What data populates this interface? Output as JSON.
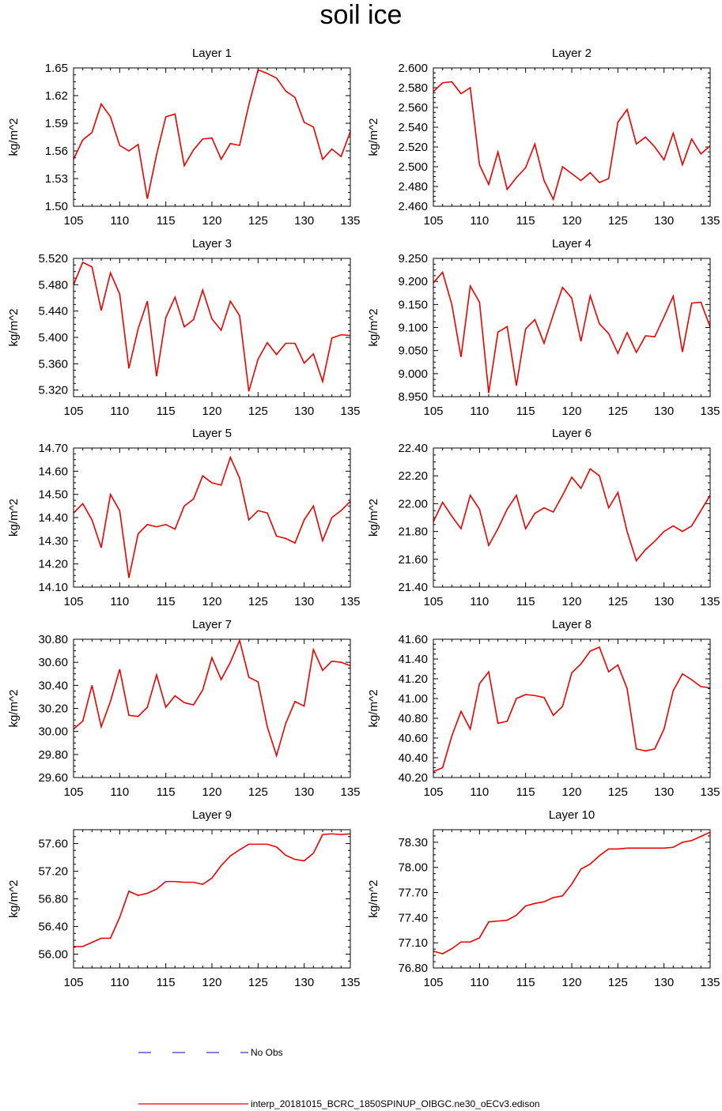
{
  "title": "soil ice",
  "legend": {
    "obs_label": "No Obs",
    "model_label": "interp_20181015_BCRC_1850SPINUP_OIBGC.ne30_oECv3.edison",
    "obs_color": "#0000cc",
    "model_color": "#ee0000"
  },
  "chart_data": [
    {
      "type": "line",
      "title": "Layer 1",
      "ylabel": "kg/m^2",
      "xlabel": "",
      "xlim": [
        105,
        135
      ],
      "ylim": [
        1.5,
        1.65
      ],
      "xticks": [
        "105",
        "110",
        "115",
        "120",
        "125",
        "130",
        "135"
      ],
      "yticks": [
        "1.50",
        "1.53",
        "1.56",
        "1.59",
        "1.62",
        "1.65"
      ],
      "x": [
        105,
        106,
        107,
        108,
        109,
        110,
        111,
        112,
        113,
        114,
        115,
        116,
        117,
        118,
        119,
        120,
        121,
        122,
        123,
        124,
        125,
        126,
        127,
        128,
        129,
        130,
        131,
        132,
        133,
        134,
        135
      ],
      "series": [
        {
          "values": [
            1.551,
            1.572,
            1.58,
            1.611,
            1.597,
            1.566,
            1.56,
            1.567,
            1.508,
            1.556,
            1.597,
            1.6,
            1.544,
            1.561,
            1.573,
            1.574,
            1.551,
            1.568,
            1.566,
            1.61,
            1.648,
            1.644,
            1.639,
            1.625,
            1.618,
            1.591,
            1.586,
            1.551,
            1.562,
            1.554,
            1.581
          ],
          "color": "#ee0000"
        }
      ]
    },
    {
      "type": "line",
      "title": "Layer 2",
      "ylabel": "kg/m^2",
      "xlabel": "",
      "xlim": [
        105,
        135
      ],
      "ylim": [
        2.46,
        2.6
      ],
      "xticks": [
        "105",
        "110",
        "115",
        "120",
        "125",
        "130",
        "135"
      ],
      "yticks": [
        "2.460",
        "2.480",
        "2.500",
        "2.520",
        "2.540",
        "2.560",
        "2.580",
        "2.600"
      ],
      "x": [
        105,
        106,
        107,
        108,
        109,
        110,
        111,
        112,
        113,
        114,
        115,
        116,
        117,
        118,
        119,
        120,
        121,
        122,
        123,
        124,
        125,
        126,
        127,
        128,
        129,
        130,
        131,
        132,
        133,
        134,
        135
      ],
      "series": [
        {
          "values": [
            2.576,
            2.585,
            2.586,
            2.574,
            2.58,
            2.502,
            2.482,
            2.515,
            2.477,
            2.489,
            2.499,
            2.523,
            2.486,
            2.467,
            2.5,
            2.493,
            2.486,
            2.494,
            2.484,
            2.488,
            2.545,
            2.558,
            2.523,
            2.53,
            2.52,
            2.507,
            2.534,
            2.502,
            2.528,
            2.513,
            2.521
          ],
          "color": "#ee0000"
        }
      ]
    },
    {
      "type": "line",
      "title": "Layer 3",
      "ylabel": "kg/m^2",
      "xlabel": "",
      "xlim": [
        105,
        135
      ],
      "ylim": [
        5.31,
        5.52
      ],
      "xticks": [
        "105",
        "110",
        "115",
        "120",
        "125",
        "130",
        "135"
      ],
      "yticks": [
        "5.320",
        "5.360",
        "5.400",
        "5.440",
        "5.480",
        "5.520"
      ],
      "x": [
        105,
        106,
        107,
        108,
        109,
        110,
        111,
        112,
        113,
        114,
        115,
        116,
        117,
        118,
        119,
        120,
        121,
        122,
        123,
        124,
        125,
        126,
        127,
        128,
        129,
        130,
        131,
        132,
        133,
        134,
        135
      ],
      "series": [
        {
          "values": [
            5.48,
            5.514,
            5.507,
            5.441,
            5.498,
            5.466,
            5.353,
            5.413,
            5.455,
            5.341,
            5.43,
            5.461,
            5.416,
            5.427,
            5.472,
            5.428,
            5.411,
            5.455,
            5.433,
            5.318,
            5.367,
            5.392,
            5.374,
            5.391,
            5.391,
            5.361,
            5.375,
            5.333,
            5.399,
            5.404,
            5.403
          ],
          "color": "#ee0000"
        }
      ]
    },
    {
      "type": "line",
      "title": "Layer 4",
      "ylabel": "kg/m^2",
      "xlabel": "",
      "xlim": [
        105,
        135
      ],
      "ylim": [
        8.95,
        9.25
      ],
      "xticks": [
        "105",
        "110",
        "115",
        "120",
        "125",
        "130",
        "135"
      ],
      "yticks": [
        "8.950",
        "9.000",
        "9.050",
        "9.100",
        "9.150",
        "9.200",
        "9.250"
      ],
      "x": [
        105,
        106,
        107,
        108,
        109,
        110,
        111,
        112,
        113,
        114,
        115,
        116,
        117,
        118,
        119,
        120,
        121,
        122,
        123,
        124,
        125,
        126,
        127,
        128,
        129,
        130,
        131,
        132,
        133,
        134,
        135
      ],
      "series": [
        {
          "values": [
            9.197,
            9.22,
            9.15,
            9.036,
            9.19,
            9.155,
            8.958,
            9.09,
            9.102,
            8.974,
            9.097,
            9.117,
            9.066,
            9.128,
            9.187,
            9.164,
            9.07,
            9.169,
            9.108,
            9.087,
            9.044,
            9.089,
            9.046,
            9.082,
            9.08,
            9.123,
            9.168,
            9.047,
            9.153,
            9.155,
            9.101
          ],
          "color": "#ee0000"
        }
      ]
    },
    {
      "type": "line",
      "title": "Layer 5",
      "ylabel": "kg/m^2",
      "xlabel": "",
      "xlim": [
        105,
        135
      ],
      "ylim": [
        14.1,
        14.7
      ],
      "xticks": [
        "105",
        "110",
        "115",
        "120",
        "125",
        "130",
        "135"
      ],
      "yticks": [
        "14.10",
        "14.20",
        "14.30",
        "14.40",
        "14.50",
        "14.60",
        "14.70"
      ],
      "x": [
        105,
        106,
        107,
        108,
        109,
        110,
        111,
        112,
        113,
        114,
        115,
        116,
        117,
        118,
        119,
        120,
        121,
        122,
        123,
        124,
        125,
        126,
        127,
        128,
        129,
        130,
        131,
        132,
        133,
        134,
        135
      ],
      "series": [
        {
          "values": [
            14.42,
            14.46,
            14.39,
            14.27,
            14.5,
            14.43,
            14.14,
            14.33,
            14.37,
            14.36,
            14.37,
            14.35,
            14.45,
            14.48,
            14.58,
            14.55,
            14.54,
            14.66,
            14.57,
            14.39,
            14.43,
            14.42,
            14.32,
            14.31,
            14.29,
            14.39,
            14.45,
            14.3,
            14.4,
            14.43,
            14.47
          ],
          "color": "#ee0000"
        }
      ]
    },
    {
      "type": "line",
      "title": "Layer 6",
      "ylabel": "kg/m^2",
      "xlabel": "",
      "xlim": [
        105,
        135
      ],
      "ylim": [
        21.4,
        22.4
      ],
      "xticks": [
        "105",
        "110",
        "115",
        "120",
        "125",
        "130",
        "135"
      ],
      "yticks": [
        "21.40",
        "21.60",
        "21.80",
        "22.00",
        "22.20",
        "22.40"
      ],
      "x": [
        105,
        106,
        107,
        108,
        109,
        110,
        111,
        112,
        113,
        114,
        115,
        116,
        117,
        118,
        119,
        120,
        121,
        122,
        123,
        124,
        125,
        126,
        127,
        128,
        129,
        130,
        131,
        132,
        133,
        134,
        135
      ],
      "series": [
        {
          "values": [
            21.87,
            22.01,
            21.91,
            21.82,
            22.06,
            21.96,
            21.7,
            21.82,
            21.96,
            22.06,
            21.82,
            21.93,
            21.97,
            21.94,
            22.06,
            22.19,
            22.11,
            22.25,
            22.2,
            21.97,
            22.08,
            21.8,
            21.59,
            21.67,
            21.73,
            21.8,
            21.84,
            21.8,
            21.84,
            21.95,
            22.06
          ],
          "color": "#ee0000"
        }
      ]
    },
    {
      "type": "line",
      "title": "Layer 7",
      "ylabel": "kg/m^2",
      "xlabel": "",
      "xlim": [
        105,
        135
      ],
      "ylim": [
        29.6,
        30.8
      ],
      "xticks": [
        "105",
        "110",
        "115",
        "120",
        "125",
        "130",
        "135"
      ],
      "yticks": [
        "29.60",
        "29.80",
        "30.00",
        "30.20",
        "30.40",
        "30.60",
        "30.80"
      ],
      "x": [
        105,
        106,
        107,
        108,
        109,
        110,
        111,
        112,
        113,
        114,
        115,
        116,
        117,
        118,
        119,
        120,
        121,
        122,
        123,
        124,
        125,
        126,
        127,
        128,
        129,
        130,
        131,
        132,
        133,
        134,
        135
      ],
      "series": [
        {
          "values": [
            30.02,
            30.09,
            30.4,
            30.04,
            30.26,
            30.54,
            30.14,
            30.13,
            30.21,
            30.49,
            30.21,
            30.31,
            30.25,
            30.23,
            30.36,
            30.64,
            30.45,
            30.6,
            30.79,
            30.47,
            30.43,
            30.04,
            29.79,
            30.07,
            30.26,
            30.22,
            30.71,
            30.53,
            30.61,
            30.6,
            30.57
          ],
          "color": "#ee0000"
        }
      ]
    },
    {
      "type": "line",
      "title": "Layer 8",
      "ylabel": "kg/m^2",
      "xlabel": "",
      "xlim": [
        105,
        135
      ],
      "ylim": [
        40.2,
        41.6
      ],
      "xticks": [
        "105",
        "110",
        "115",
        "120",
        "125",
        "130",
        "135"
      ],
      "yticks": [
        "40.20",
        "40.40",
        "40.60",
        "40.80",
        "41.00",
        "41.20",
        "41.40",
        "41.60"
      ],
      "x": [
        105,
        106,
        107,
        108,
        109,
        110,
        111,
        112,
        113,
        114,
        115,
        116,
        117,
        118,
        119,
        120,
        121,
        122,
        123,
        124,
        125,
        126,
        127,
        128,
        129,
        130,
        131,
        132,
        133,
        134,
        135
      ],
      "series": [
        {
          "values": [
            40.26,
            40.3,
            40.62,
            40.87,
            40.69,
            41.15,
            41.27,
            40.75,
            40.77,
            41.0,
            41.04,
            41.03,
            41.01,
            40.83,
            40.92,
            41.26,
            41.35,
            41.48,
            41.52,
            41.27,
            41.34,
            41.1,
            40.49,
            40.47,
            40.49,
            40.69,
            41.08,
            41.25,
            41.19,
            41.12,
            41.11
          ],
          "color": "#ee0000"
        }
      ]
    },
    {
      "type": "line",
      "title": "Layer 9",
      "ylabel": "kg/m^2",
      "xlabel": "",
      "xlim": [
        105,
        135
      ],
      "ylim": [
        55.8,
        57.8
      ],
      "xticks": [
        "105",
        "110",
        "115",
        "120",
        "125",
        "130",
        "135"
      ],
      "yticks": [
        "56.00",
        "56.40",
        "56.80",
        "57.20",
        "57.60"
      ],
      "x": [
        105,
        106,
        107,
        108,
        109,
        110,
        111,
        112,
        113,
        114,
        115,
        116,
        117,
        118,
        119,
        120,
        121,
        122,
        123,
        124,
        125,
        126,
        127,
        128,
        129,
        130,
        131,
        132,
        133,
        134,
        135
      ],
      "series": [
        {
          "values": [
            56.11,
            56.11,
            56.17,
            56.23,
            56.23,
            56.53,
            56.91,
            56.85,
            56.88,
            56.94,
            57.05,
            57.05,
            57.04,
            57.04,
            57.01,
            57.1,
            57.28,
            57.42,
            57.51,
            57.59,
            57.59,
            57.59,
            57.55,
            57.43,
            57.37,
            57.35,
            57.46,
            57.73,
            57.74,
            57.73,
            57.74
          ],
          "color": "#ee0000"
        }
      ]
    },
    {
      "type": "line",
      "title": "Layer 10",
      "ylabel": "kg/m^2",
      "xlabel": "",
      "xlim": [
        105,
        135
      ],
      "ylim": [
        76.8,
        78.45
      ],
      "xticks": [
        "105",
        "110",
        "115",
        "120",
        "125",
        "130",
        "135"
      ],
      "yticks": [
        "76.80",
        "77.10",
        "77.40",
        "77.70",
        "78.00",
        "78.30"
      ],
      "x": [
        105,
        106,
        107,
        108,
        109,
        110,
        111,
        112,
        113,
        114,
        115,
        116,
        117,
        118,
        119,
        120,
        121,
        122,
        123,
        124,
        125,
        126,
        127,
        128,
        129,
        130,
        131,
        132,
        133,
        134,
        135
      ],
      "series": [
        {
          "values": [
            77.0,
            76.97,
            77.03,
            77.11,
            77.11,
            77.16,
            77.35,
            77.36,
            77.37,
            77.43,
            77.54,
            77.57,
            77.59,
            77.64,
            77.66,
            77.8,
            77.98,
            78.04,
            78.14,
            78.22,
            78.22,
            78.23,
            78.23,
            78.23,
            78.23,
            78.23,
            78.24,
            78.3,
            78.32,
            78.37,
            78.42
          ],
          "color": "#ee0000"
        }
      ]
    }
  ]
}
